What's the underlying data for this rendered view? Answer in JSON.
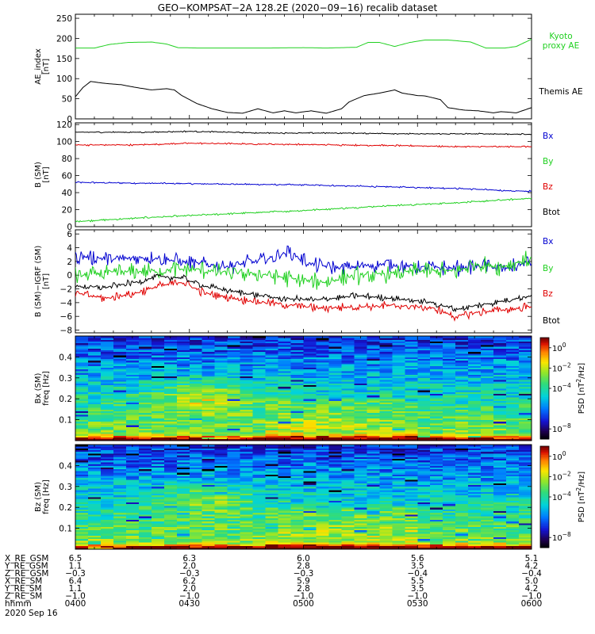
{
  "figure": {
    "title": "GEO−KOMPSAT−2A 128.2E (2020−09−16) recalib dataset"
  },
  "time_axis": {
    "range_minutes": [
      0,
      120
    ],
    "ticks": [
      "0400",
      "0430",
      "0500",
      "0530",
      "0600"
    ],
    "date_label": "2020 Sep 16"
  },
  "ephemeris": {
    "rows": [
      {
        "label": "X_RE_GSM",
        "values": [
          "6.5",
          "6.3",
          "6.0",
          "5.6",
          "5.1"
        ]
      },
      {
        "label": "Y_RE_GSM",
        "values": [
          "1.1",
          "2.0",
          "2.8",
          "3.5",
          "4.2"
        ]
      },
      {
        "label": "Z_RE_GSM",
        "values": [
          "−0.3",
          "−0.3",
          "−0.3",
          "−0.4",
          "−0.4"
        ]
      },
      {
        "label": "X_RE_SM",
        "values": [
          "6.4",
          "6.2",
          "5.9",
          "5.5",
          "5.0"
        ]
      },
      {
        "label": "Y_RE_SM",
        "values": [
          "1.1",
          "2.0",
          "2.8",
          "3.5",
          "4.2"
        ]
      },
      {
        "label": "Z_RE_SM",
        "values": [
          "−1.0",
          "−1.0",
          "−1.0",
          "−1.0",
          "−1.0"
        ]
      },
      {
        "label": "hhmm",
        "values": [
          "0400",
          "0430",
          "0500",
          "0530",
          "0600"
        ]
      }
    ]
  },
  "colors": {
    "black": "#000000",
    "red": "#e00000",
    "green": "#20d020",
    "blue": "#0000d0"
  },
  "chart_data": [
    {
      "type": "line",
      "ylabel": "AE_index\n[nT]",
      "ylim": [
        0,
        260
      ],
      "yticks": [
        0,
        50,
        100,
        150,
        200,
        250
      ],
      "series": [
        {
          "name": "Kyoto\nproxy AE",
          "color": "#20d020",
          "points": [
            [
              0,
              176
            ],
            [
              5,
              176
            ],
            [
              9,
              185
            ],
            [
              14,
              190
            ],
            [
              20,
              191
            ],
            [
              24,
              186
            ],
            [
              27,
              177
            ],
            [
              33,
              176
            ],
            [
              40,
              176
            ],
            [
              50,
              176
            ],
            [
              60,
              177
            ],
            [
              66,
              176
            ],
            [
              74,
              178
            ],
            [
              77,
              190
            ],
            [
              80,
              190
            ],
            [
              84,
              180
            ],
            [
              88,
              190
            ],
            [
              92,
              196
            ],
            [
              98,
              196
            ],
            [
              104,
              191
            ],
            [
              108,
              176
            ],
            [
              113,
              176
            ],
            [
              116,
              180
            ],
            [
              120,
              198
            ],
            [
              124,
              214
            ],
            [
              128,
              212
            ]
          ]
        },
        {
          "name": "Themis AE",
          "color": "#000000",
          "points": [
            [
              0,
              55
            ],
            [
              2,
              78
            ],
            [
              4,
              93
            ],
            [
              8,
              88
            ],
            [
              12,
              85
            ],
            [
              16,
              78
            ],
            [
              20,
              72
            ],
            [
              24,
              75
            ],
            [
              26,
              72
            ],
            [
              28,
              58
            ],
            [
              32,
              38
            ],
            [
              36,
              25
            ],
            [
              40,
              16
            ],
            [
              44,
              14
            ],
            [
              48,
              25
            ],
            [
              52,
              15
            ],
            [
              55,
              20
            ],
            [
              58,
              15
            ],
            [
              62,
              20
            ],
            [
              66,
              14
            ],
            [
              70,
              25
            ],
            [
              72,
              42
            ],
            [
              76,
              58
            ],
            [
              80,
              64
            ],
            [
              84,
              72
            ],
            [
              86,
              64
            ],
            [
              90,
              58
            ],
            [
              92,
              57
            ],
            [
              96,
              48
            ],
            [
              98,
              28
            ],
            [
              102,
              22
            ],
            [
              106,
              20
            ],
            [
              110,
              15
            ],
            [
              112,
              18
            ],
            [
              116,
              15
            ],
            [
              120,
              28
            ],
            [
              124,
              20
            ],
            [
              128,
              12
            ]
          ]
        }
      ]
    },
    {
      "type": "line",
      "ylabel": "B (SM)\n[nT]",
      "ylim": [
        0,
        122
      ],
      "yticks": [
        0,
        20,
        40,
        60,
        80,
        100,
        120
      ],
      "series": [
        {
          "name": "Bx",
          "color": "#0000d0",
          "points": [
            [
              0,
              52
            ],
            [
              20,
              51
            ],
            [
              40,
              50
            ],
            [
              60,
              49
            ],
            [
              80,
              47
            ],
            [
              100,
              45
            ],
            [
              115,
              42
            ],
            [
              128,
              41
            ]
          ],
          "wiggle": 0.6
        },
        {
          "name": "By",
          "color": "#20d020",
          "points": [
            [
              0,
              6
            ],
            [
              20,
              11
            ],
            [
              40,
              15
            ],
            [
              60,
              19
            ],
            [
              80,
              24
            ],
            [
              100,
              28
            ],
            [
              115,
              32
            ],
            [
              128,
              35
            ]
          ],
          "wiggle": 0.7
        },
        {
          "name": "Bz",
          "color": "#e00000",
          "points": [
            [
              0,
              96
            ],
            [
              15,
              96
            ],
            [
              30,
              98
            ],
            [
              50,
              97
            ],
            [
              70,
              96
            ],
            [
              90,
              95
            ],
            [
              100,
              94
            ],
            [
              128,
              94
            ]
          ],
          "wiggle": 0.6
        },
        {
          "name": "Btot",
          "color": "#000000",
          "points": [
            [
              0,
              111
            ],
            [
              20,
              111
            ],
            [
              30,
              112
            ],
            [
              50,
              110
            ],
            [
              70,
              110
            ],
            [
              90,
              109
            ],
            [
              110,
              109
            ],
            [
              128,
              108
            ]
          ],
          "wiggle": 0.5
        }
      ]
    },
    {
      "type": "line",
      "ylabel": "B (SM)−IGRF (SM)\n[nT]",
      "ylim": [
        -8.4,
        6.6
      ],
      "yticks": [
        -8,
        -6,
        -4,
        -2,
        0,
        2,
        4,
        6
      ],
      "series": [
        {
          "name": "Bx",
          "color": "#0000d0",
          "points": [
            [
              0,
              2.8
            ],
            [
              10,
              2.3
            ],
            [
              20,
              2.6
            ],
            [
              30,
              1.8
            ],
            [
              40,
              1.3
            ],
            [
              50,
              2.2
            ],
            [
              56,
              3.4
            ],
            [
              62,
              1.6
            ],
            [
              70,
              1.0
            ],
            [
              80,
              1.6
            ],
            [
              90,
              1.2
            ],
            [
              100,
              1.0
            ],
            [
              108,
              1.4
            ],
            [
              112,
              0.8
            ],
            [
              120,
              2.0
            ],
            [
              128,
              2.4
            ]
          ],
          "wiggle": 0.7
        },
        {
          "name": "By",
          "color": "#20d020",
          "points": [
            [
              0,
              -0.1
            ],
            [
              10,
              0.4
            ],
            [
              20,
              0.6
            ],
            [
              30,
              0.9
            ],
            [
              40,
              0.4
            ],
            [
              50,
              0.1
            ],
            [
              60,
              -0.8
            ],
            [
              66,
              -1.0
            ],
            [
              72,
              -0.2
            ],
            [
              80,
              0.1
            ],
            [
              90,
              0.6
            ],
            [
              100,
              0.6
            ],
            [
              106,
              1.6
            ],
            [
              112,
              1.2
            ],
            [
              120,
              2.4
            ],
            [
              128,
              2.9
            ]
          ],
          "wiggle": 0.8
        },
        {
          "name": "Bz",
          "color": "#e00000",
          "points": [
            [
              0,
              -2.6
            ],
            [
              8,
              -3.4
            ],
            [
              16,
              -2.6
            ],
            [
              22,
              -1.6
            ],
            [
              28,
              -1.0
            ],
            [
              34,
              -2.6
            ],
            [
              44,
              -3.6
            ],
            [
              54,
              -4.2
            ],
            [
              64,
              -4.8
            ],
            [
              74,
              -4.6
            ],
            [
              84,
              -4.4
            ],
            [
              94,
              -4.8
            ],
            [
              100,
              -6.0
            ],
            [
              106,
              -5.4
            ],
            [
              114,
              -5.0
            ],
            [
              120,
              -4.6
            ],
            [
              128,
              -6.0
            ]
          ],
          "wiggle": 0.4
        },
        {
          "name": "Btot",
          "color": "#000000",
          "points": [
            [
              0,
              -1.6
            ],
            [
              8,
              -1.8
            ],
            [
              16,
              -1.0
            ],
            [
              22,
              -0.2
            ],
            [
              28,
              -0.4
            ],
            [
              34,
              -1.6
            ],
            [
              44,
              -2.6
            ],
            [
              54,
              -3.4
            ],
            [
              64,
              -3.6
            ],
            [
              74,
              -3.0
            ],
            [
              84,
              -3.4
            ],
            [
              94,
              -4.0
            ],
            [
              100,
              -5.0
            ],
            [
              106,
              -4.4
            ],
            [
              114,
              -3.6
            ],
            [
              120,
              -3.0
            ],
            [
              128,
              -3.6
            ]
          ],
          "wiggle": 0.3
        }
      ]
    },
    {
      "type": "heatmap",
      "ylabel": "Bx (SM)\nfreq [Hz]",
      "ylim": [
        0,
        0.5
      ],
      "yticks": [
        "0.1",
        "0.2",
        "0.3",
        "0.4"
      ],
      "colorbar": {
        "label": "PSD [nT^2/Hz]",
        "log_range": [
          -9,
          1
        ],
        "ticks": [
          {
            "exp": "0",
            "v": 0
          },
          {
            "exp": "−2",
            "v": -2
          },
          {
            "exp": "−4",
            "v": -4
          },
          {
            "exp": "−8",
            "v": -8
          }
        ]
      },
      "enhancement": {
        "t_center": 34,
        "f_center": 0.21,
        "level": 2.2
      }
    },
    {
      "type": "heatmap",
      "ylabel": "Bz (SM)\nfreq [Hz]",
      "ylim": [
        0,
        0.5
      ],
      "yticks": [
        "0.1",
        "0.2",
        "0.3",
        "0.4"
      ],
      "colorbar": {
        "label": "PSD [nT^2/Hz]",
        "log_range": [
          -9,
          1
        ],
        "ticks": [
          {
            "exp": "0",
            "v": 0
          },
          {
            "exp": "−2",
            "v": -2
          },
          {
            "exp": "−4",
            "v": -4
          },
          {
            "exp": "−8",
            "v": -8
          }
        ]
      },
      "enhancement": {
        "t_center": 34,
        "f_center": 0.24,
        "level": 1.8
      }
    }
  ]
}
